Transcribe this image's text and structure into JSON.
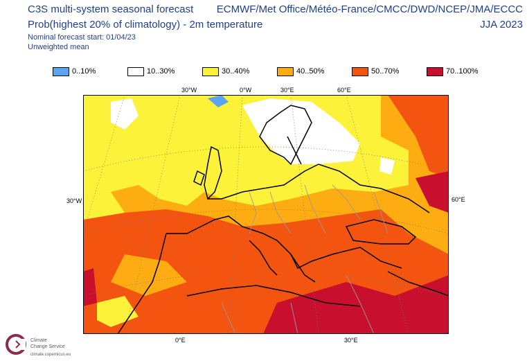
{
  "header": {
    "title_line1": "C3S multi-system seasonal forecast",
    "title_line2": "Prob(highest 20% of climatology) - 2m temperature",
    "forecast_start": "Nominal forecast start: 01/04/23",
    "weighting": "Unweighted mean",
    "systems": "ECMWF/Met Office/Météo-France/CMCC/DWD/NCEP/JMA/ECCC",
    "season": "JJA 2023"
  },
  "legend": [
    {
      "label": "0..10%",
      "color": "#5aa4f0"
    },
    {
      "label": "10..30%",
      "color": "#ffffff"
    },
    {
      "label": "30..40%",
      "color": "#fdf23a"
    },
    {
      "label": "40..50%",
      "color": "#fdac12"
    },
    {
      "label": "50..70%",
      "color": "#f35410"
    },
    {
      "label": "70..100%",
      "color": "#c8102e"
    }
  ],
  "map": {
    "top_labels": [
      "30°W",
      "0°W",
      "30°E",
      "60°E"
    ],
    "left_label": "30°W",
    "right_label": "60°E",
    "bottom_labels": [
      "0°E",
      "30°E"
    ]
  },
  "logo": {
    "name_line1": "Climate",
    "name_line2": "Change Service",
    "url": "climate.copernicus.eu",
    "icon": "copernicus-c3s-logo-icon"
  }
}
